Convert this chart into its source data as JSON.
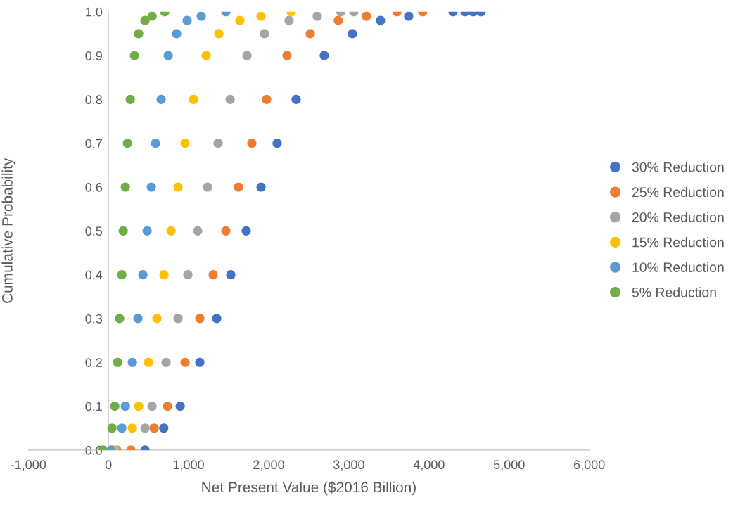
{
  "chart_data": {
    "type": "scatter",
    "xlabel": "Net Present Value ($2016 Billion)",
    "ylabel": "Cumulative Probability",
    "xlim": [
      -1000,
      6000
    ],
    "ylim": [
      0,
      1
    ],
    "xticks": [
      {
        "value": -1000,
        "label": "-1,000"
      },
      0,
      {
        "value": 1000,
        "label": "1,000"
      },
      {
        "value": 2000,
        "label": "2,000"
      },
      {
        "value": 3000,
        "label": "3,000"
      },
      {
        "value": 4000,
        "label": "4,000"
      },
      {
        "value": 5000,
        "label": "5,000"
      },
      {
        "value": 6000,
        "label": "6,000"
      }
    ],
    "yticks": [
      {
        "value": 0,
        "label": "0.0"
      },
      0.1,
      0.2,
      0.3,
      0.4,
      0.5,
      0.6,
      0.7,
      0.8,
      0.9,
      {
        "value": 1,
        "label": "1.0"
      }
    ],
    "grid": false,
    "legend": "right",
    "marker": "circle",
    "series": [
      {
        "name": "30% Reduction",
        "color": "#4472c4",
        "x": [
          456,
          690,
          895,
          1140,
          1351,
          1526,
          1719,
          1904,
          2105,
          2342,
          2693,
          3044,
          3395,
          3746,
          4300,
          4450,
          4550,
          4650
        ],
        "values": [
          0,
          0.05,
          0.1,
          0.2,
          0.3,
          0.4,
          0.5,
          0.6,
          0.7,
          0.8,
          0.9,
          0.95,
          0.98,
          0.99,
          1.0,
          1.0,
          1.0,
          1.0
        ]
      },
      {
        "name": "25% Reduction",
        "color": "#ed7d31",
        "x": [
          280,
          570,
          737,
          956,
          1140,
          1307,
          1465,
          1623,
          1789,
          1974,
          2228,
          2518,
          2868,
          3219,
          3600,
          3921
        ],
        "values": [
          0,
          0.05,
          0.1,
          0.2,
          0.3,
          0.4,
          0.5,
          0.6,
          0.7,
          0.8,
          0.9,
          0.95,
          0.98,
          0.99,
          1.0,
          1.0
        ]
      },
      {
        "name": "20% Reduction",
        "color": "#a5a5a5",
        "x": [
          105,
          456,
          544,
          719,
          868,
          991,
          1114,
          1237,
          1368,
          1518,
          1728,
          1947,
          2254,
          2605,
          2900,
          3061
        ],
        "values": [
          0,
          0.05,
          0.1,
          0.2,
          0.3,
          0.4,
          0.5,
          0.6,
          0.7,
          0.8,
          0.9,
          0.95,
          0.98,
          0.99,
          1.0,
          1.0
        ]
      },
      {
        "name": "15% Reduction",
        "color": "#ffc000",
        "x": [
          61,
          298,
          377,
          500,
          605,
          693,
          781,
          868,
          956,
          1061,
          1219,
          1377,
          1640,
          1904,
          2281
        ],
        "values": [
          0,
          0.05,
          0.1,
          0.2,
          0.3,
          0.4,
          0.5,
          0.6,
          0.7,
          0.8,
          0.9,
          0.95,
          0.98,
          0.99,
          1.0
        ]
      },
      {
        "name": "10% Reduction",
        "color": "#5b9bd5",
        "x": [
          35,
          167,
          211,
          298,
          368,
          430,
          482,
          535,
          588,
          658,
          746,
          851,
          982,
          1158,
          1465
        ],
        "values": [
          0,
          0.05,
          0.1,
          0.2,
          0.3,
          0.4,
          0.5,
          0.6,
          0.7,
          0.8,
          0.9,
          0.95,
          0.98,
          0.99,
          1.0
        ]
      },
      {
        "name": "5% Reduction",
        "color": "#70ad47",
        "x": [
          -70,
          44,
          79,
          114,
          140,
          167,
          184,
          211,
          237,
          272,
          325,
          377,
          456,
          544,
          702
        ],
        "values": [
          0,
          0.05,
          0.1,
          0.2,
          0.3,
          0.4,
          0.5,
          0.6,
          0.7,
          0.8,
          0.9,
          0.95,
          0.98,
          0.99,
          1.0
        ]
      }
    ]
  }
}
